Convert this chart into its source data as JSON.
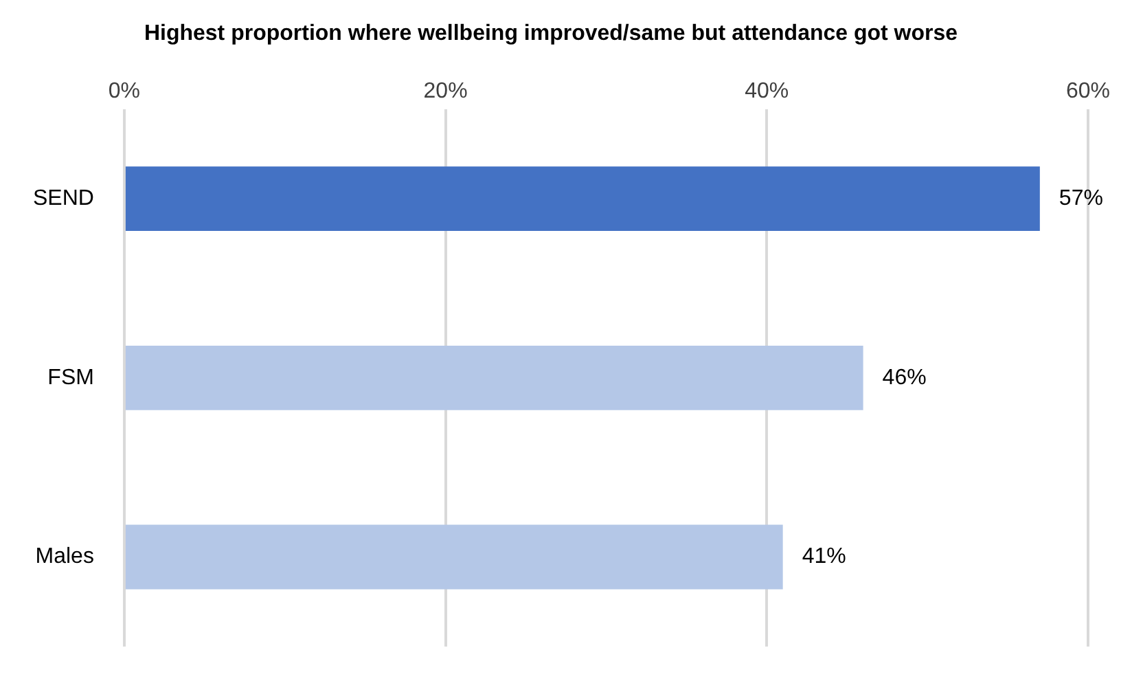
{
  "chart_data": {
    "type": "bar",
    "orientation": "horizontal",
    "title": "Highest proportion where wellbeing improved/same but attendance got worse",
    "categories": [
      "SEND",
      "FSM",
      "Males"
    ],
    "values": [
      57,
      46,
      41
    ],
    "colors": [
      "#4472c4",
      "#b4c7e7",
      "#b4c7e7"
    ],
    "xlim": [
      0,
      60
    ],
    "xticks": [
      {
        "value": 0,
        "label": "0%"
      },
      {
        "value": 20,
        "label": "20%"
      },
      {
        "value": 40,
        "label": "40%"
      },
      {
        "value": 60,
        "label": "60%"
      }
    ],
    "value_labels": [
      "57%",
      "46%",
      "41%"
    ],
    "grid": "x",
    "legend": false
  }
}
